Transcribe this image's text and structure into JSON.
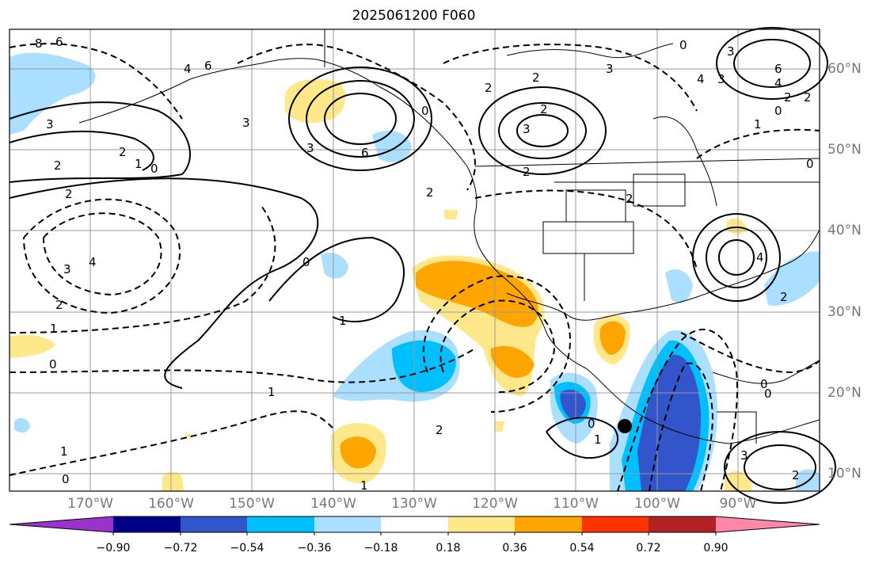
{
  "title": "2025061200 F060",
  "lat_labels": [
    "60°N",
    "50°N",
    "40°N",
    "30°N",
    "20°N",
    "10°N"
  ],
  "lon_labels": [
    "170°W",
    "160°W",
    "150°W",
    "140°W",
    "130°W",
    "120°W",
    "110°W",
    "100°W",
    "90°W"
  ],
  "colorbar": {
    "levels": [
      "−0.90",
      "−0.72",
      "−0.54",
      "−0.36",
      "−0.18",
      "0.18",
      "0.36",
      "0.54",
      "0.72",
      "0.90"
    ],
    "colors": [
      "#9933cc",
      "#000088",
      "#3355cc",
      "#00bfff",
      "#aadfff",
      "#ffffff",
      "#ffe88a",
      "#ffa500",
      "#ff3300",
      "#b22222",
      "#ff88aa"
    ]
  },
  "contour_labels": [
    "6",
    "8",
    "6",
    "4",
    "3",
    "2",
    "3",
    "2",
    "1",
    "0",
    "2",
    "3",
    "2",
    "4",
    "6",
    "3",
    "0",
    "2",
    "1",
    "2",
    "3",
    "2",
    "2",
    "0",
    "3",
    "2",
    "6",
    "4",
    "2",
    "0",
    "2",
    "1",
    "0",
    "3",
    "4",
    "3",
    "2",
    "1",
    "0",
    "0",
    "1",
    "1",
    "1",
    "0",
    "0",
    "1",
    "0",
    "3",
    "4",
    "2",
    "2",
    "2",
    "0"
  ],
  "colors": {
    "frame": "#000000",
    "grid": "#999999",
    "contour": "#000000",
    "coast": "#000000"
  }
}
